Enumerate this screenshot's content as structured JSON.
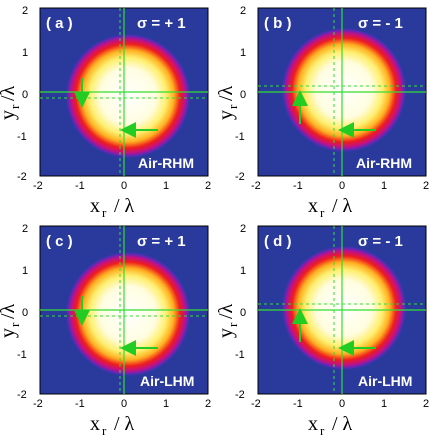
{
  "colors": {
    "background": "#2a3a9c",
    "cross_lines": "#33dd33",
    "arrow": "#22cc22",
    "label_text": "#ffffff"
  },
  "axis_labels": {
    "x_main": "x",
    "x_sub": "r",
    "x_tail": "/ λ",
    "y_main": "y",
    "y_sub": "r",
    "y_tail": "/λ"
  },
  "ticks": {
    "x": [
      "-2",
      "-1",
      "0",
      "1",
      "2"
    ],
    "y": [
      "2",
      "1",
      "0",
      "-1",
      "-2"
    ]
  },
  "panels": [
    {
      "tag": "( a )",
      "sigma": "σ = + 1",
      "medium": "Air-RHM",
      "dashed_shift": {
        "x": -0.08,
        "y": -0.15
      },
      "arrow_vertical_dir": "down",
      "arrow_horizontal_dir": "left"
    },
    {
      "tag": "( b )",
      "sigma": "σ = - 1",
      "medium": "Air-RHM",
      "dashed_shift": {
        "x": -0.2,
        "y": 0.15
      },
      "arrow_vertical_dir": "up",
      "arrow_horizontal_dir": "left"
    },
    {
      "tag": "( c )",
      "sigma": "σ = + 1",
      "medium": "Air-LHM",
      "dashed_shift": {
        "x": -0.08,
        "y": -0.15
      },
      "arrow_vertical_dir": "down",
      "arrow_horizontal_dir": "left"
    },
    {
      "tag": "( d )",
      "sigma": "σ = - 1",
      "medium": "Air-LHM",
      "dashed_shift": {
        "x": -0.2,
        "y": 0.15
      },
      "arrow_vertical_dir": "up",
      "arrow_horizontal_dir": "left"
    }
  ]
}
